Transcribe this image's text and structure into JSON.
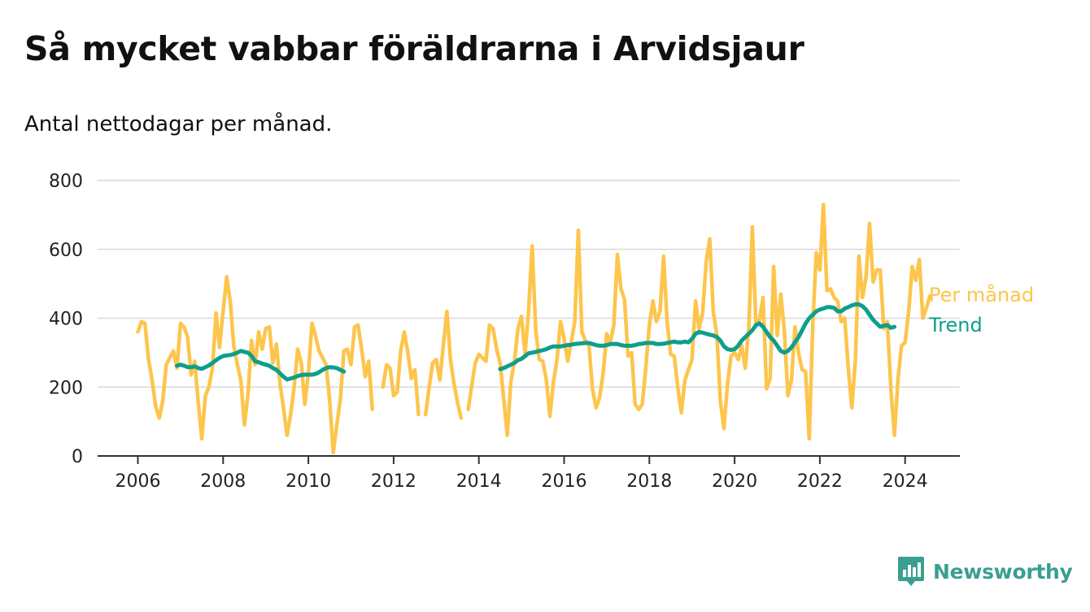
{
  "title": "Så mycket vabbar föräldrarna i Arvidsjaur",
  "subtitle": "Antal nettodagar per månad.",
  "brand": {
    "label": "Newsworthy",
    "icon": "newsworthy-logo-icon",
    "color": "#3a9e91"
  },
  "chart_data": {
    "type": "line",
    "xlim": [
      2005.5,
      2025.25
    ],
    "ylim": [
      0,
      800
    ],
    "x_ticks": [
      "2006",
      "2008",
      "2010",
      "2012",
      "2014",
      "2016",
      "2018",
      "2020",
      "2022",
      "2024"
    ],
    "y_ticks": [
      "0",
      "200",
      "400",
      "600",
      "800"
    ],
    "grid": true,
    "legend": "right",
    "series": [
      {
        "name": "Per månad",
        "color": "#fdc54c",
        "segments": [
          {
            "start": 2006.0,
            "values": [
              360,
              390,
              385,
              280,
              220,
              145,
              110,
              160,
              265,
              285,
              305,
              255,
              385,
              375,
              345,
              235,
              275,
              155,
              50,
              175,
              200,
              255,
              415,
              315,
              420,
              520,
              450,
              320,
              265,
              220,
              90,
              180,
              335,
              265,
              360,
              310,
              370,
              375,
              270,
              325,
              210,
              140,
              60,
              120,
              200,
              310,
              270,
              150,
              240,
              385,
              350,
              305,
              285,
              265,
              160,
              10,
              90,
              165,
              305,
              310,
              265,
              375,
              380,
              310,
              230,
              275,
              135
            ]
          },
          {
            "start": 2011.75,
            "values": [
              200,
              265,
              255,
              175,
              185,
              305,
              360,
              300,
              225,
              250,
              120,
              null,
              120,
              200,
              270,
              280,
              220,
              320,
              420,
              280,
              210,
              155,
              110
            ]
          },
          {
            "start": 2013.75,
            "values": [
              135,
              205,
              270,
              295,
              285,
              275,
              380,
              370,
              310,
              270,
              165,
              60,
              215,
              275,
              370,
              405,
              295,
              420,
              610,
              365,
              280,
              275,
              220,
              115,
              215,
              280,
              390,
              340,
              275,
              330,
              390,
              655,
              360,
              335,
              320,
              195,
              140,
              170,
              240,
              355,
              330,
              380,
              585,
              485,
              455,
              290,
              300,
              150,
              135,
              150,
              255,
              380,
              450,
              390,
              420,
              580,
              390,
              295,
              290,
              200,
              125,
              220,
              250,
              280,
              450,
              370,
              415,
              565,
              630,
              420,
              350,
              160,
              80,
              210,
              290,
              300,
              280,
              320,
              255,
              375,
              665,
              380,
              395,
              460,
              195,
              225,
              550,
              350,
              470,
              365,
              175,
              220,
              375,
              300,
              250,
              245,
              50,
              380,
              590,
              540,
              730,
              480,
              485,
              460,
              450,
              390,
              400,
              255,
              140,
              280,
              580,
              460,
              520,
              675,
              505,
              540,
              540,
              370,
              390,
              195,
              60,
              225,
              320,
              330,
              420,
              550,
              510,
              570,
              400,
              430,
              465
            ]
          }
        ]
      },
      {
        "name": "Trend",
        "color": "#0f9e8c",
        "segments": [
          {
            "start": 2006.917,
            "values": [
              262,
              265,
              262,
              258,
              258,
              260,
              255,
              253,
              258,
              263,
              270,
              278,
              285,
              290,
              292,
              293,
              296,
              300,
              305,
              302,
              300,
              290,
              275,
              272,
              268,
              265,
              262,
              255,
              250,
              240,
              230,
              222,
              225,
              228,
              232,
              235,
              236,
              236,
              236,
              238,
              243,
              250,
              255,
              258,
              257,
              255,
              250,
              245
            ]
          },
          {
            "start": 2014.5,
            "values": [
              252,
              255,
              260,
              265,
              270,
              278,
              282,
              290,
              298,
              300,
              302,
              305,
              307,
              310,
              315,
              318,
              318,
              318,
              320,
              322,
              323,
              325,
              326,
              327,
              328,
              328,
              325,
              322,
              320,
              320,
              322,
              325,
              325,
              325,
              322,
              320,
              320,
              320,
              322,
              325,
              326,
              328,
              328,
              328,
              325,
              325,
              326,
              328,
              330,
              332,
              330,
              330,
              332,
              330,
              340,
              355,
              360,
              358,
              355,
              352,
              350,
              345,
              335,
              318,
              310,
              308,
              310,
              320,
              335,
              345,
              355,
              365,
              380,
              385,
              375,
              360,
              345,
              335,
              320,
              305,
              300,
              305,
              315,
              330,
              345,
              365,
              385,
              400,
              410,
              420,
              425,
              428,
              432,
              432,
              430,
              420,
              420,
              428,
              432,
              437,
              440,
              440,
              435,
              425,
              410,
              395,
              385,
              375,
              378,
              380,
              372,
              375
            ]
          }
        ]
      }
    ]
  }
}
